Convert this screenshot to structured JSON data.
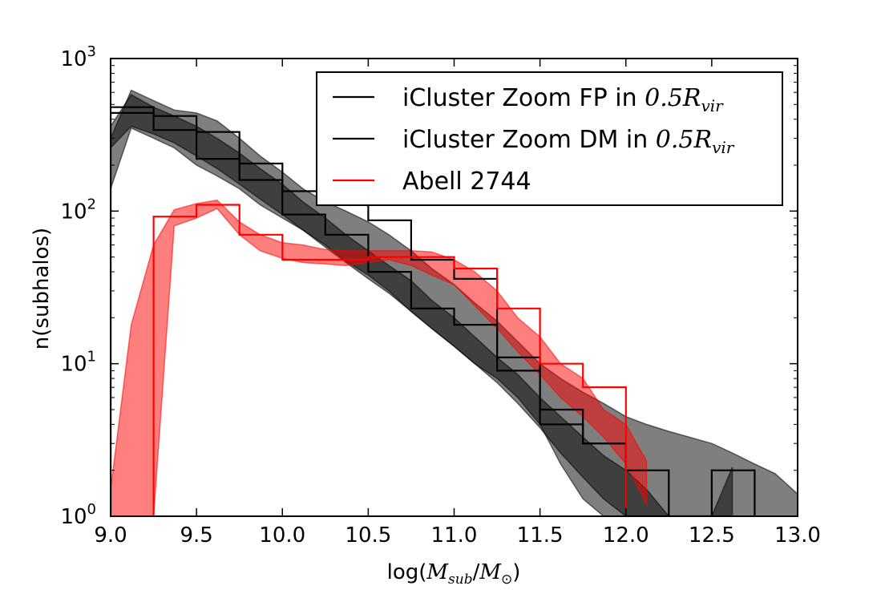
{
  "chart_data": {
    "type": "line",
    "title": "",
    "xlabel": "log(M_sub/M_⊙)",
    "ylabel": "n(subhalos)",
    "xlim": [
      9.0,
      13.0
    ],
    "ylim": [
      1,
      1000
    ],
    "yscale": "log",
    "x_ticks": [
      9.0,
      9.5,
      10.0,
      10.5,
      11.0,
      11.5,
      12.0,
      12.5,
      13.0
    ],
    "x_tick_labels": [
      "9.0",
      "9.5",
      "10.0",
      "10.5",
      "11.0",
      "11.5",
      "12.0",
      "12.5",
      "13.0"
    ],
    "y_tick_labels": [
      {
        "value": 1,
        "base": "10",
        "exp": "0"
      },
      {
        "value": 10,
        "base": "10",
        "exp": "1"
      },
      {
        "value": 100,
        "base": "10",
        "exp": "2"
      },
      {
        "value": 1000,
        "base": "10",
        "exp": "3"
      }
    ],
    "legend_position": "top-right",
    "series": [
      {
        "name": "iCluster Zoom FP in 0.5R_vir",
        "legend_prefix": "iCluster Zoom FP in ",
        "legend_math": "0.5R",
        "legend_sub": "vir",
        "color": "#000000",
        "style": "step",
        "bin_edges": [
          9.0,
          9.25,
          9.5,
          9.75,
          10.0,
          10.25,
          10.5,
          10.75,
          11.0,
          11.25,
          11.5,
          11.75,
          12.0,
          12.25,
          12.5,
          12.75
        ],
        "values": [
          480,
          420,
          330,
          205,
          135,
          115,
          87,
          48,
          36,
          11,
          5,
          3,
          2,
          1,
          2
        ],
        "band": {
          "color": "#000000",
          "opacity": 0.5,
          "x": [
            9.0,
            9.12,
            9.25,
            9.37,
            9.5,
            9.62,
            9.75,
            9.87,
            10.0,
            10.12,
            10.25,
            10.37,
            10.5,
            10.62,
            10.75,
            10.87,
            11.0,
            11.12,
            11.25,
            11.37,
            11.5,
            11.62,
            11.75,
            11.87,
            12.0,
            12.12,
            12.25,
            12.37,
            12.5,
            12.62,
            12.75,
            12.87,
            13.0
          ],
          "upper": [
            300,
            620,
            530,
            460,
            440,
            390,
            300,
            230,
            180,
            140,
            115,
            100,
            85,
            70,
            55,
            42,
            33,
            25,
            19,
            14,
            10,
            8,
            6.5,
            5.5,
            4.5,
            4,
            3.6,
            3.3,
            3,
            2.6,
            2.2,
            1.9,
            1.4
          ],
          "lower": [
            140,
            350,
            300,
            260,
            200,
            170,
            140,
            110,
            90,
            75,
            60,
            47,
            38,
            30,
            22,
            17,
            13,
            10,
            8,
            6,
            4,
            2.2,
            1.3,
            1.0,
            1.0,
            1.0,
            1.0,
            1.0,
            1.0,
            1.0,
            1.0,
            1.0,
            1.0
          ]
        }
      },
      {
        "name": "iCluster Zoom DM in 0.5R_vir",
        "legend_prefix": "iCluster Zoom DM in ",
        "legend_math": "0.5R",
        "legend_sub": "vir",
        "color": "#000000",
        "style": "step",
        "bin_edges": [
          9.0,
          9.25,
          9.5,
          9.75,
          10.0,
          10.25,
          10.5,
          10.75,
          11.0,
          11.25,
          11.5,
          11.75,
          12.0,
          12.25
        ],
        "values": [
          440,
          340,
          220,
          160,
          95,
          70,
          40,
          23,
          18,
          9,
          4,
          3,
          1
        ],
        "band": {
          "color": "#000000",
          "opacity": 0.5,
          "x": [
            9.0,
            9.12,
            9.25,
            9.37,
            9.5,
            9.62,
            9.75,
            9.87,
            10.0,
            10.12,
            10.25,
            10.37,
            10.5,
            10.62,
            10.75,
            10.87,
            11.0,
            11.12,
            11.25,
            11.37,
            11.5,
            11.62,
            11.75,
            11.87,
            12.0,
            12.12,
            12.25,
            12.37,
            12.5,
            12.62
          ],
          "upper": [
            360,
            580,
            480,
            420,
            360,
            300,
            240,
            190,
            150,
            115,
            90,
            70,
            55,
            44,
            35,
            26,
            20,
            15,
            11,
            8.5,
            6,
            4.5,
            3.3,
            2.5,
            2,
            1.5,
            1.0,
            1.0,
            1.0,
            2.1
          ],
          "lower": [
            260,
            360,
            320,
            280,
            230,
            190,
            150,
            120,
            95,
            75,
            58,
            46,
            36,
            29,
            22,
            17,
            13,
            10,
            7.5,
            5.5,
            3.8,
            2.6,
            1.8,
            1.3,
            1.0,
            1.0,
            1.0,
            1.0,
            1.0,
            1.0
          ]
        }
      },
      {
        "name": "Abell 2744",
        "legend_prefix": "Abell 2744",
        "legend_math": "",
        "legend_sub": "",
        "color": "#ff0000",
        "style": "step",
        "bin_edges": [
          9.25,
          9.5,
          9.75,
          10.0,
          10.25,
          10.5,
          10.75,
          11.0,
          11.25,
          11.5,
          11.75,
          12.0
        ],
        "values": [
          92,
          110,
          70,
          48,
          48,
          50,
          50,
          42,
          23,
          10,
          7
        ],
        "band": {
          "color": "#ff0000",
          "opacity": 0.5,
          "x": [
            9.0,
            9.12,
            9.25,
            9.37,
            9.5,
            9.62,
            9.75,
            9.87,
            10.0,
            10.12,
            10.25,
            10.37,
            10.5,
            10.62,
            10.75,
            10.87,
            11.0,
            11.12,
            11.25,
            11.37,
            11.5,
            11.62,
            11.75,
            11.87,
            12.0,
            12.12
          ],
          "upper": [
            1.5,
            18,
            60,
            102,
            112,
            118,
            85,
            70,
            62,
            60,
            56,
            55,
            55,
            55,
            55,
            54,
            48,
            40,
            30,
            20,
            15,
            10,
            8,
            5,
            4,
            2.3
          ],
          "lower": [
            1.0,
            1.0,
            1.0,
            80,
            90,
            104,
            70,
            55,
            49,
            46,
            45,
            44,
            46,
            48,
            44,
            38,
            33,
            24,
            17,
            12,
            8.5,
            6,
            4.5,
            3.3,
            2.2,
            1.2
          ]
        }
      }
    ]
  }
}
